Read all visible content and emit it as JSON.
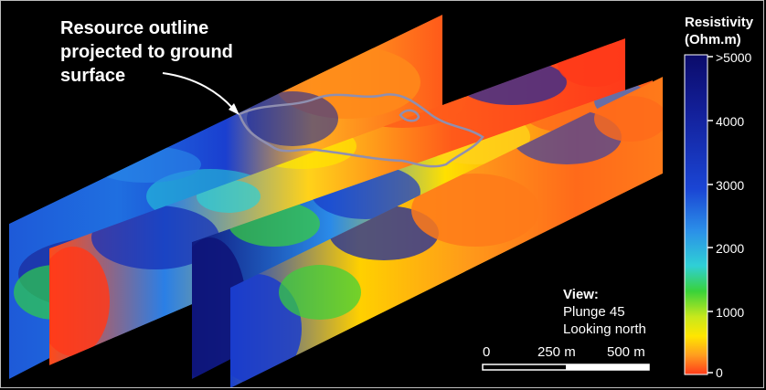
{
  "callout": {
    "line1": "Resource outline",
    "line2": "projected to ground",
    "line3": "surface"
  },
  "legend": {
    "title_line1": "Resistivity",
    "title_line2": "(Ohm.m)",
    "ticks": [
      ">5000",
      "4000",
      "3000",
      "2000",
      "1000",
      "0"
    ],
    "gradient": [
      "#0b0b6a",
      "#13209a",
      "#1a45d4",
      "#2b8fe8",
      "#2fd0d6",
      "#39d23a",
      "#c8e81c",
      "#ffe600",
      "#ff9d1f",
      "#ff3a1a"
    ]
  },
  "view": {
    "heading": "View:",
    "plunge": "Plunge 45",
    "direction": "Looking north"
  },
  "scale_bar": {
    "labels": [
      "0",
      "250 m",
      "500 m"
    ]
  },
  "colors": {
    "background": "#000000",
    "outline": "#8f8fb0",
    "text": "#ffffff"
  }
}
